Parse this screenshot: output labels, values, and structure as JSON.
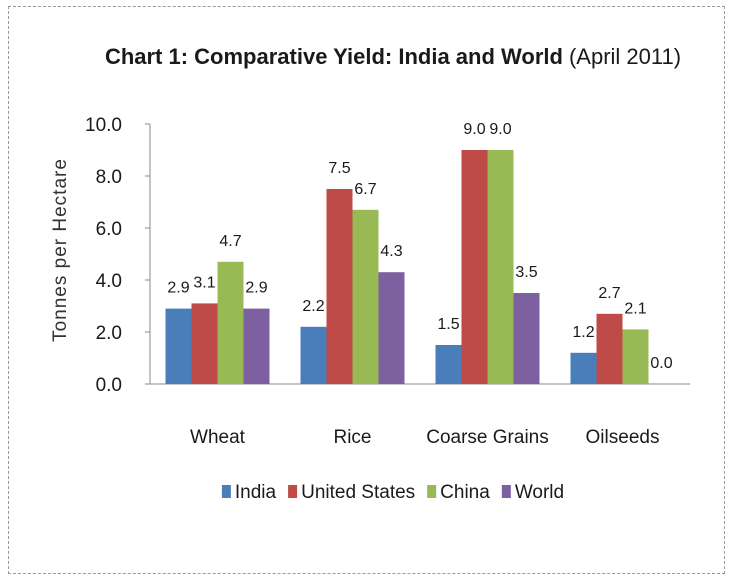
{
  "chart_data": {
    "type": "bar",
    "title": "Chart 1: Comparative Yield: India and World",
    "subtitle": "(April 2011)",
    "ylabel": "Tonnes per Hectare",
    "xlabel": "",
    "ylim": [
      0,
      10
    ],
    "yticks": [
      "0.0",
      "2.0",
      "4.0",
      "6.0",
      "8.0",
      "10.0"
    ],
    "categories": [
      "Wheat",
      "Rice",
      "Coarse Grains",
      "Oilseeds"
    ],
    "series": [
      {
        "name": "India",
        "color": "#4a7ebb",
        "values": [
          2.9,
          2.2,
          1.5,
          1.2
        ],
        "labels": [
          "2.9",
          "2.2",
          "1.5",
          "1.2"
        ]
      },
      {
        "name": "United States",
        "color": "#be4b48",
        "values": [
          3.1,
          7.5,
          9.0,
          2.7
        ],
        "labels": [
          "3.1",
          "7.5",
          "9.0",
          "2.7"
        ]
      },
      {
        "name": "China",
        "color": "#98b954",
        "values": [
          4.7,
          6.7,
          9.0,
          2.1
        ],
        "labels": [
          "4.7",
          "6.7",
          "9.0",
          "2.1"
        ]
      },
      {
        "name": "World",
        "color": "#7d60a0",
        "values": [
          2.9,
          4.3,
          3.5,
          0.0
        ],
        "labels": [
          "2.9",
          "4.3",
          "3.5",
          "0.0"
        ]
      }
    ],
    "legend_position": "bottom",
    "grid": false
  }
}
